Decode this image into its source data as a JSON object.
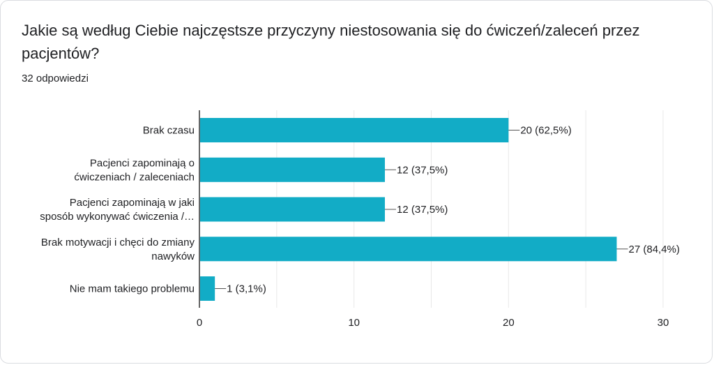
{
  "question": "Jakie są według Ciebie najczęstsze przyczyny niestosowania się do ćwiczeń/zaleceń przez pacjentów?",
  "response_count": "32 odpowiedzi",
  "colors": {
    "bar": "#12acc6",
    "grid": "#e8e8e8",
    "axis": "#333333",
    "text": "#202124"
  },
  "chart_data": {
    "type": "bar",
    "orientation": "horizontal",
    "categories": [
      [
        "Brak czasu"
      ],
      [
        "Pacjenci zapominają o",
        "ćwiczeniach / zaleceniach"
      ],
      [
        "Pacjenci zapominają w jaki",
        "sposób wykonywać ćwiczenia /…"
      ],
      [
        "Brak motywacji i chęci do zmiany",
        "nawyków"
      ],
      [
        "Nie mam takiego problemu"
      ]
    ],
    "values": [
      20,
      12,
      12,
      27,
      1
    ],
    "value_labels": [
      "20 (62,5%)",
      "12 (37,5%)",
      "12 (37,5%)",
      "27 (84,4%)",
      "1 (3,1%)"
    ],
    "xlim": [
      0,
      30
    ],
    "x_ticks": [
      0,
      10,
      20,
      30
    ],
    "grid": true
  }
}
